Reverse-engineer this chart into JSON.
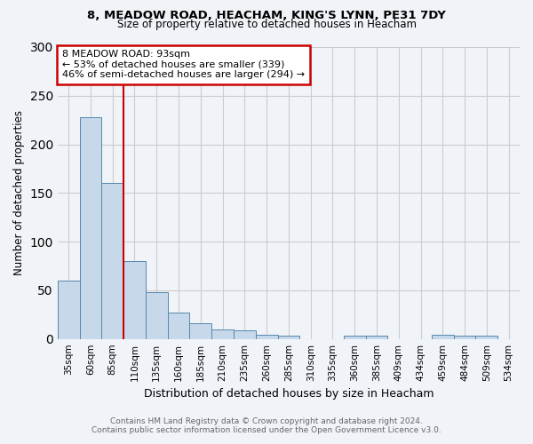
{
  "title_line1": "8, MEADOW ROAD, HEACHAM, KING'S LYNN, PE31 7DY",
  "title_line2": "Size of property relative to detached houses in Heacham",
  "xlabel": "Distribution of detached houses by size in Heacham",
  "ylabel": "Number of detached properties",
  "categories": [
    "35sqm",
    "60sqm",
    "85sqm",
    "110sqm",
    "135sqm",
    "160sqm",
    "185sqm",
    "210sqm",
    "235sqm",
    "260sqm",
    "285sqm",
    "310sqm",
    "335sqm",
    "360sqm",
    "385sqm",
    "409sqm",
    "434sqm",
    "459sqm",
    "484sqm",
    "509sqm",
    "534sqm"
  ],
  "values": [
    60,
    228,
    160,
    80,
    48,
    27,
    16,
    10,
    9,
    4,
    3,
    0,
    0,
    3,
    3,
    0,
    0,
    4,
    3,
    3,
    0
  ],
  "bar_color": "#c8d8eb",
  "bar_edge_color": "#5588aa",
  "vline_x": 2.5,
  "vline_color": "#cc0000",
  "ylim": [
    0,
    300
  ],
  "yticks": [
    0,
    50,
    100,
    150,
    200,
    250,
    300
  ],
  "annotation_box_text": "8 MEADOW ROAD: 93sqm\n← 53% of detached houses are smaller (339)\n46% of semi-detached houses are larger (294) →",
  "annotation_box_color": "#ffffff",
  "annotation_box_edge_color": "#cc0000",
  "footnote_line1": "Contains HM Land Registry data © Crown copyright and database right 2024.",
  "footnote_line2": "Contains public sector information licensed under the Open Government Licence v3.0.",
  "background_color": "#f0f4f8",
  "grid_color": "#cccccc"
}
